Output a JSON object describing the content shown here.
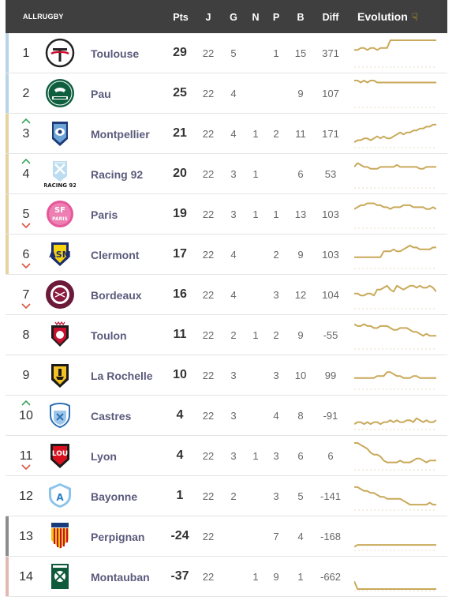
{
  "header": {
    "brand": "ALLRUGBY",
    "pts": "Pts",
    "j": "J",
    "g": "G",
    "n": "N",
    "p": "P",
    "b": "B",
    "diff": "Diff",
    "evolution": "Evolution",
    "evolution_icon": "pointing-hand-down-icon"
  },
  "colors": {
    "header_bg": "#3f3f3f",
    "band_blue": "#b9d3e8",
    "band_gold": "#e7d3a0",
    "band_gray": "#8c8c8c",
    "band_pink": "#e4b8b2",
    "spark_line": "#c9a95a",
    "move_up": "#3aa35a",
    "move_down": "#d9543c"
  },
  "teams": [
    {
      "rank": "1",
      "move": "",
      "band": "blue",
      "name": "Toulouse",
      "pts": "29",
      "j": "22",
      "g": "5",
      "n": "",
      "p": "1",
      "b": "15",
      "diff": "371",
      "logo": "toulouse",
      "evo": [
        6,
        6,
        5,
        5,
        6,
        5,
        5,
        6,
        5,
        5,
        5,
        1,
        1,
        1,
        1,
        1,
        1,
        1,
        1,
        1,
        1,
        1,
        1,
        1,
        1,
        1
      ]
    },
    {
      "rank": "2",
      "move": "",
      "band": "blue",
      "name": "Pau",
      "pts": "25",
      "j": "22",
      "g": "4",
      "n": "",
      "p": "",
      "b": "9",
      "diff": "107",
      "logo": "pau",
      "evo": [
        1,
        1,
        2,
        1,
        2,
        1,
        1,
        2,
        2,
        2,
        2,
        2,
        2,
        2,
        2,
        2,
        2,
        2,
        2,
        2,
        2,
        2,
        2,
        2,
        2,
        2
      ]
    },
    {
      "rank": "3",
      "move": "up",
      "band": "gold",
      "name": "Montpellier",
      "pts": "21",
      "j": "22",
      "g": "4",
      "n": "1",
      "p": "2",
      "b": "11",
      "diff": "171",
      "logo": "montpellier",
      "evo": [
        12,
        11,
        11,
        10,
        10,
        11,
        10,
        9,
        10,
        9,
        10,
        10,
        9,
        8,
        7,
        8,
        7,
        7,
        6,
        6,
        5,
        5,
        4,
        4,
        3,
        3
      ]
    },
    {
      "rank": "4",
      "move": "up",
      "band": "gold",
      "name": "Racing 92",
      "pts": "20",
      "j": "22",
      "g": "3",
      "n": "1",
      "p": "",
      "b": "6",
      "diff": "53",
      "logo": "racing",
      "evo": [
        4,
        2,
        3,
        4,
        4,
        5,
        5,
        5,
        4,
        4,
        4,
        4,
        4,
        3,
        4,
        4,
        4,
        4,
        4,
        4,
        5,
        5,
        4,
        4,
        4,
        4
      ]
    },
    {
      "rank": "5",
      "move": "down",
      "band": "gold",
      "name": "Paris",
      "pts": "19",
      "j": "22",
      "g": "3",
      "n": "1",
      "p": "1",
      "b": "13",
      "diff": "103",
      "logo": "paris",
      "evo": [
        5,
        4,
        3,
        3,
        2,
        2,
        2,
        3,
        3,
        4,
        4,
        5,
        4,
        4,
        4,
        3,
        3,
        3,
        4,
        4,
        4,
        4,
        5,
        5,
        4,
        5
      ]
    },
    {
      "rank": "6",
      "move": "down",
      "band": "gold",
      "name": "Clermont",
      "pts": "17",
      "j": "22",
      "g": "4",
      "n": "",
      "p": "2",
      "b": "9",
      "diff": "103",
      "logo": "clermont",
      "evo": [
        9,
        9,
        9,
        9,
        9,
        9,
        9,
        9,
        9,
        6,
        6,
        6,
        5,
        6,
        6,
        5,
        4,
        3,
        4,
        4,
        5,
        5,
        5,
        5,
        4,
        4
      ]
    },
    {
      "rank": "7",
      "move": "down",
      "band": "none",
      "name": "Bordeaux",
      "pts": "16",
      "j": "22",
      "g": "4",
      "n": "",
      "p": "3",
      "b": "12",
      "diff": "104",
      "logo": "bordeaux",
      "evo": [
        7,
        7,
        8,
        8,
        7,
        7,
        8,
        5,
        5,
        4,
        3,
        5,
        6,
        3,
        4,
        5,
        4,
        3,
        3,
        4,
        3,
        4,
        4,
        3,
        4,
        6
      ]
    },
    {
      "rank": "8",
      "move": "",
      "band": "none",
      "name": "Toulon",
      "pts": "11",
      "j": "22",
      "g": "2",
      "n": "1",
      "p": "2",
      "b": "9",
      "diff": "-55",
      "logo": "toulon",
      "evo": [
        2,
        3,
        3,
        2,
        3,
        3,
        4,
        4,
        3,
        3,
        3,
        4,
        5,
        5,
        4,
        4,
        4,
        5,
        6,
        6,
        7,
        8,
        7,
        8,
        8,
        8
      ]
    },
    {
      "rank": "9",
      "move": "",
      "band": "none",
      "name": "La Rochelle",
      "pts": "10",
      "j": "22",
      "g": "3",
      "n": "",
      "p": "3",
      "b": "10",
      "diff": "99",
      "logo": "larochelle",
      "evo": [
        9,
        9,
        9,
        9,
        9,
        9,
        9,
        8,
        8,
        8,
        6,
        6,
        7,
        8,
        8,
        9,
        9,
        9,
        8,
        8,
        9,
        9,
        9,
        9,
        9,
        9
      ]
    },
    {
      "rank": "10",
      "move": "up",
      "band": "none",
      "name": "Castres",
      "pts": "4",
      "j": "22",
      "g": "3",
      "n": "",
      "p": "4",
      "b": "8",
      "diff": "-91",
      "logo": "castres",
      "evo": [
        12,
        11,
        11,
        12,
        11,
        12,
        11,
        11,
        12,
        11,
        11,
        10,
        11,
        10,
        11,
        11,
        10,
        10,
        11,
        9,
        10,
        11,
        10,
        11,
        11,
        10
      ]
    },
    {
      "rank": "11",
      "move": "down",
      "band": "none",
      "name": "Lyon",
      "pts": "4",
      "j": "22",
      "g": "3",
      "n": "1",
      "p": "3",
      "b": "6",
      "diff": "6",
      "logo": "lyon",
      "evo": [
        1,
        1,
        2,
        3,
        4,
        6,
        7,
        7,
        8,
        10,
        11,
        11,
        11,
        11,
        10,
        11,
        11,
        11,
        10,
        9,
        9,
        10,
        11,
        10,
        10,
        10
      ]
    },
    {
      "rank": "12",
      "move": "",
      "band": "none",
      "name": "Bayonne",
      "pts": "1",
      "j": "22",
      "g": "2",
      "n": "",
      "p": "3",
      "b": "5",
      "diff": "-141",
      "logo": "bayonne",
      "evo": [
        3,
        3,
        4,
        5,
        5,
        6,
        6,
        7,
        8,
        8,
        9,
        9,
        9,
        9,
        9,
        10,
        11,
        12,
        12,
        12,
        12,
        12,
        12,
        11,
        12,
        12
      ]
    },
    {
      "rank": "13",
      "move": "",
      "band": "gray",
      "name": "Perpignan",
      "pts": "-24",
      "j": "22",
      "g": "",
      "n": "",
      "p": "7",
      "b": "4",
      "diff": "-168",
      "logo": "perpignan",
      "evo": [
        13,
        12,
        12,
        12,
        12,
        12,
        12,
        12,
        12,
        12,
        12,
        12,
        12,
        12,
        12,
        12,
        12,
        12,
        12,
        12,
        12,
        12,
        12,
        12,
        12,
        12
      ]
    },
    {
      "rank": "14",
      "move": "",
      "band": "pink",
      "name": "Montauban",
      "pts": "-37",
      "j": "22",
      "g": "",
      "n": "1",
      "p": "9",
      "b": "1",
      "diff": "-662",
      "logo": "montauban",
      "evo": [
        10,
        14,
        14,
        14,
        14,
        14,
        14,
        14,
        14,
        14,
        14,
        14,
        14,
        14,
        14,
        14,
        14,
        14,
        14,
        14,
        14,
        14,
        14,
        14,
        14,
        14
      ]
    }
  ]
}
